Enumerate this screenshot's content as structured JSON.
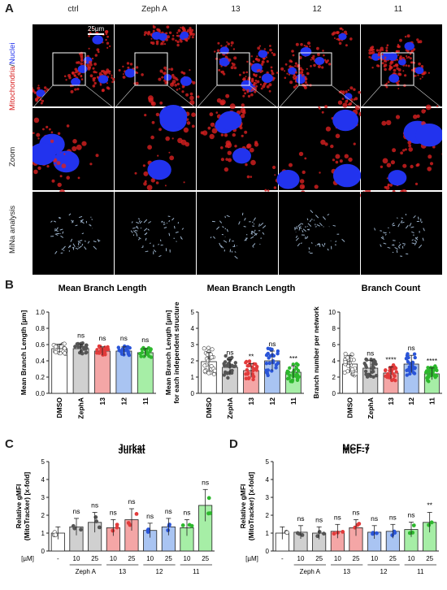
{
  "panel_a": {
    "letter": "A",
    "columns": [
      "ctrl",
      "Zeph A",
      "13",
      "12",
      "11"
    ],
    "row_labels": {
      "mitochondria": "Mitochondria",
      "nuclei": "Nuclei",
      "separator": "/",
      "zoom": "Zoom",
      "mina": "MiNa analysis"
    },
    "scale_bar": "25µm",
    "colors": {
      "mito": "#d82020",
      "nuclei": "#2233ee",
      "network": "#9ab0c8"
    }
  },
  "panel_b": {
    "letter": "B",
    "charts": [
      {
        "title": "Mean Branch Length",
        "ylabel": "Mean Branch Length [µm]",
        "ylabel2": "",
        "yticks": [
          "0.0",
          "0.2",
          "0.4",
          "0.6",
          "0.8",
          "1.0"
        ],
        "ylim": [
          0,
          1.0
        ],
        "categories": [
          "DMSO",
          "ZephA",
          "13",
          "12",
          "11"
        ],
        "values": [
          0.55,
          0.55,
          0.52,
          0.52,
          0.5
        ],
        "sig": [
          "",
          "ns",
          "ns",
          "ns",
          "ns"
        ]
      },
      {
        "title": "Mean Branch Length",
        "ylabel": "Mean Branch Length [µm]",
        "ylabel2": "for each independent structure",
        "yticks": [
          "0",
          "1",
          "2",
          "3",
          "4",
          "5"
        ],
        "ylim": [
          0,
          5
        ],
        "categories": [
          "DMSO",
          "ZephA",
          "13",
          "12",
          "11"
        ],
        "values": [
          1.95,
          1.6,
          1.4,
          2.0,
          1.3
        ],
        "sig": [
          "",
          "ns",
          "**",
          "ns",
          "***"
        ]
      },
      {
        "title": "Branch Count",
        "ylabel": "Branch number per network",
        "ylabel2": "",
        "yticks": [
          "0",
          "2",
          "4",
          "6",
          "8",
          "10"
        ],
        "ylim": [
          0,
          10
        ],
        "categories": [
          "DMSO",
          "ZephA",
          "13",
          "12",
          "11"
        ],
        "values": [
          3.6,
          3.1,
          2.5,
          3.6,
          2.4
        ],
        "sig": [
          "",
          "ns",
          "****",
          "ns",
          "****"
        ]
      }
    ]
  },
  "panel_c": {
    "letter": "C",
    "title": "Jurkat",
    "ylabel": "Relative gMFI",
    "ylabel2": "(MitoTracker) [x-fold]",
    "yticks": [
      "0",
      "1",
      "2",
      "3",
      "4",
      "5"
    ],
    "ylim": [
      0,
      5
    ],
    "unit": "[µM]",
    "dash": "-",
    "doses": [
      "10",
      "25",
      "10",
      "25",
      "10",
      "25",
      "10",
      "25"
    ],
    "groups": [
      "Zeph A",
      "13",
      "12",
      "11"
    ],
    "values": [
      1.0,
      1.35,
      1.6,
      1.3,
      1.75,
      1.15,
      1.35,
      1.3,
      2.55
    ],
    "sig": [
      "",
      "ns",
      "ns",
      "ns",
      "ns",
      "ns",
      "ns",
      "ns",
      "ns"
    ]
  },
  "panel_d": {
    "letter": "D",
    "title": "MCF-7",
    "ylabel": "Relative gMFI",
    "ylabel2": "(MitoTracker) [x-fold]",
    "yticks": [
      "0",
      "1",
      "2",
      "3",
      "4",
      "5"
    ],
    "ylim": [
      0,
      5
    ],
    "unit": "[µM]",
    "dash": "-",
    "doses": [
      "10",
      "25",
      "10",
      "25",
      "10",
      "25",
      "10",
      "25"
    ],
    "groups": [
      "Zeph A",
      "13",
      "12",
      "11"
    ],
    "values": [
      1.0,
      1.05,
      1.0,
      1.1,
      1.3,
      1.05,
      1.1,
      1.2,
      1.6
    ],
    "sig": [
      "",
      "ns",
      "ns",
      "ns",
      "ns",
      "ns",
      "ns",
      "ns",
      "**"
    ]
  },
  "bar_colors": [
    "#ffffff",
    "#d0d0d0",
    "#f4a6a6",
    "#a9c4f2",
    "#a6eea6"
  ],
  "dot_colors": [
    "#ffffff",
    "#555555",
    "#e23b3b",
    "#2a55d8",
    "#2db82d"
  ]
}
